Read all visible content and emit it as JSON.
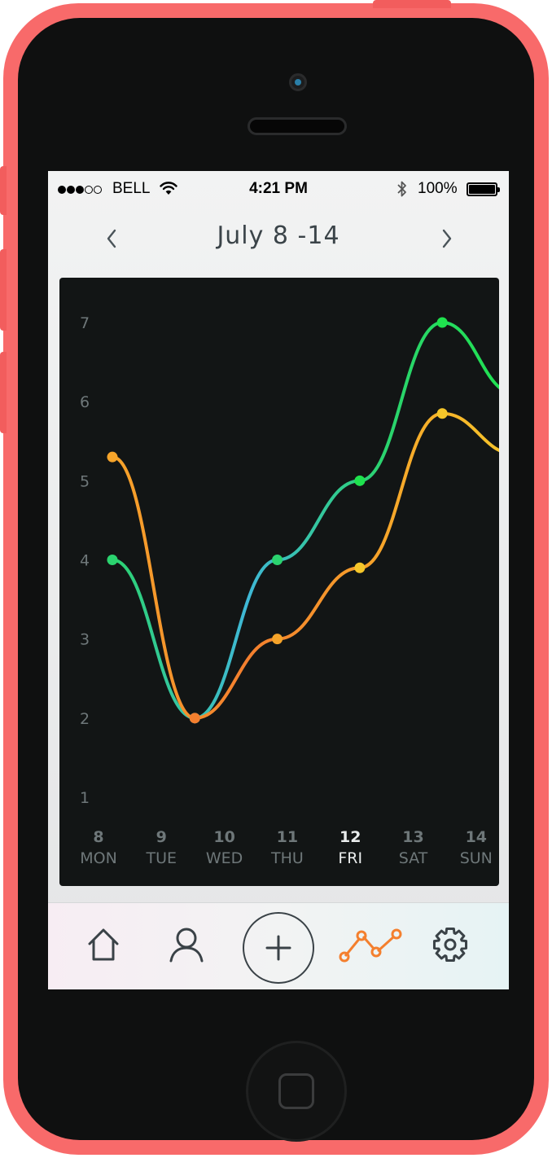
{
  "status_bar": {
    "carrier": "BELL",
    "signal_bars": 3,
    "signal_total": 5,
    "time": "4:21 PM",
    "battery": "100%",
    "battery_level": 1.0,
    "icons": [
      "wifi-icon",
      "bluetooth-icon",
      "battery-icon"
    ]
  },
  "header": {
    "title": "July 8 -14",
    "prev_icon": "chevron-left-icon",
    "next_icon": "chevron-right-icon"
  },
  "chart_data": {
    "type": "line",
    "y_ticks": [
      "1",
      "2",
      "3",
      "4",
      "5",
      "6",
      "7"
    ],
    "ylim": [
      1,
      7
    ],
    "categories": [
      {
        "day": "8",
        "weekday": "MON",
        "highlight": false
      },
      {
        "day": "9",
        "weekday": "TUE",
        "highlight": false
      },
      {
        "day": "10",
        "weekday": "WED",
        "highlight": false
      },
      {
        "day": "11",
        "weekday": "THU",
        "highlight": false
      },
      {
        "day": "12",
        "weekday": "FRI",
        "highlight": true
      },
      {
        "day": "13",
        "weekday": "SAT",
        "highlight": false
      },
      {
        "day": "14",
        "weekday": "SUN",
        "highlight": false
      }
    ],
    "series": [
      {
        "points": [
          {
            "x": 0,
            "y": 4
          },
          {
            "x": 1,
            "y": 2
          },
          {
            "x": 2,
            "y": 4
          },
          {
            "x": 3,
            "y": 5
          },
          {
            "x": 4,
            "y": 7
          }
        ],
        "colors": [
          "#2bd36f",
          "#3fb8d6",
          "#2bd36f",
          "#1fe24e"
        ]
      },
      {
        "points": [
          {
            "x": 0,
            "y": 5.3
          },
          {
            "x": 1,
            "y": 2
          },
          {
            "x": 2,
            "y": 3
          },
          {
            "x": 3,
            "y": 3.9
          },
          {
            "x": 4,
            "y": 5.85
          }
        ],
        "colors": [
          "#f6a42a",
          "#f47f2e",
          "#f6a42a",
          "#f5c62a"
        ]
      }
    ]
  },
  "tabbar": {
    "tabs": [
      {
        "id": "home",
        "icon": "home-icon",
        "active": false
      },
      {
        "id": "profile",
        "icon": "user-icon",
        "active": false
      },
      {
        "id": "add",
        "icon": "plus-icon",
        "active": false
      },
      {
        "id": "stats",
        "icon": "line-chart-icon",
        "active": true
      },
      {
        "id": "settings",
        "icon": "gear-icon",
        "active": false
      }
    ],
    "active_color": "#f47f2e",
    "inactive_color": "#3a4247"
  }
}
